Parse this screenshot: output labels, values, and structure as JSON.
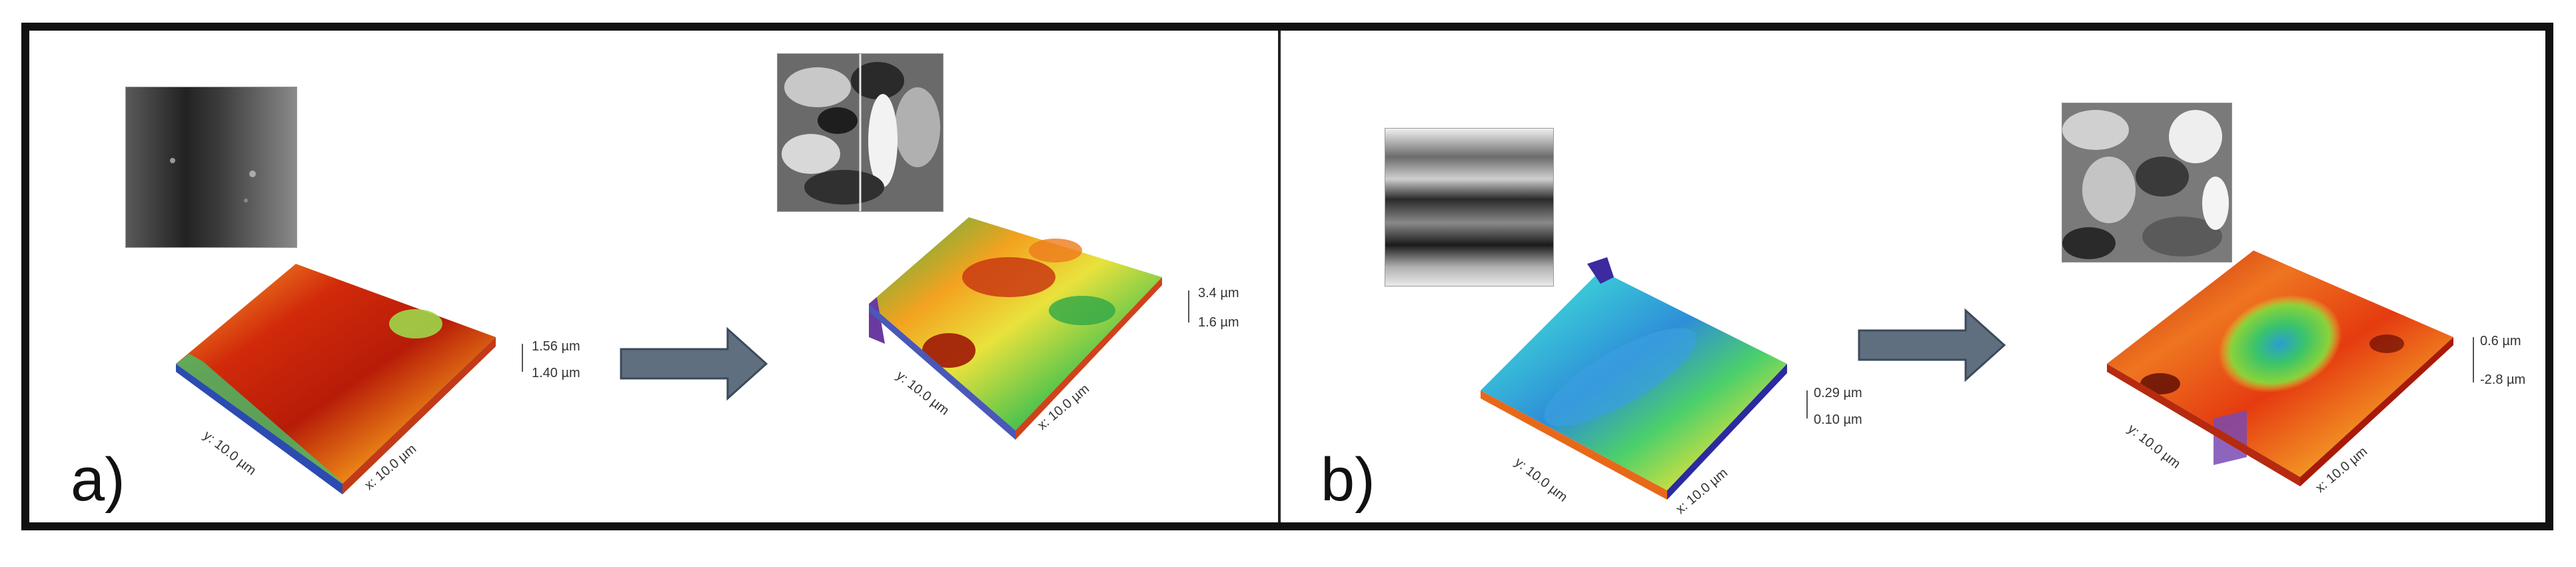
{
  "figure": {
    "panels": [
      {
        "id": "a",
        "label": "a)",
        "before": {
          "height_max": "1.56 µm",
          "height_min": "1.40 µm",
          "x_label": "x: 10.0 µm",
          "y_label": "y: 10.0 µm"
        },
        "after": {
          "height_max": "3.4 µm",
          "height_min": "1.6 µm",
          "x_label": "x: 10.0 µm",
          "y_label": "y: 10.0 µm"
        }
      },
      {
        "id": "b",
        "label": "b)",
        "before": {
          "height_max": "0.29 µm",
          "height_min": "0.10 µm",
          "x_label": "x: 10.0 µm",
          "y_label": "y: 10.0 µm"
        },
        "after": {
          "height_max": "0.6 µm",
          "height_min": "-2.8 µm",
          "x_label": "x: 10.0 µm",
          "y_label": "y: 10.0 µm"
        }
      }
    ],
    "colors": {
      "arrow_fill": "#5f6f80",
      "arrow_stroke": "#3a4a5a",
      "border": "#111111"
    }
  }
}
